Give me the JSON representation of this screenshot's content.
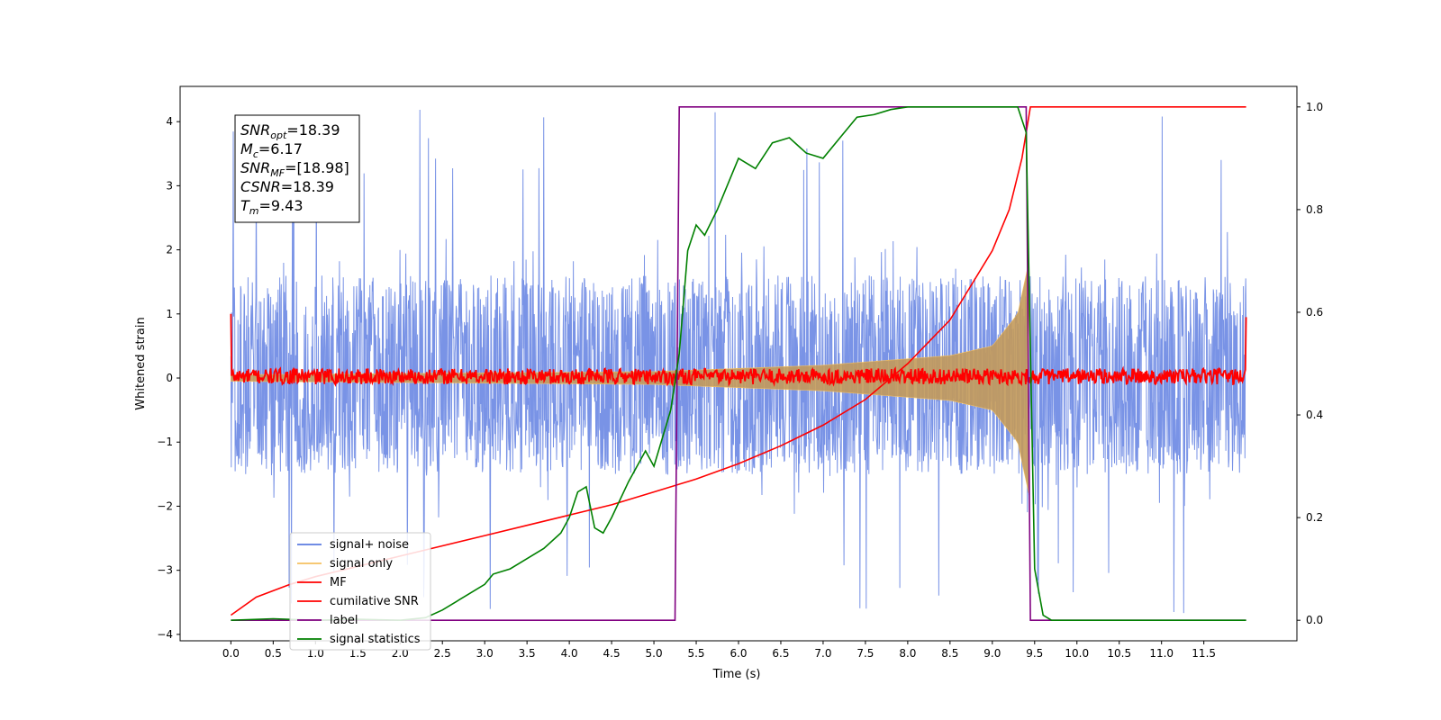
{
  "chart_data": {
    "type": "line",
    "xlabel": "Time (s)",
    "ylabel": "Whitened strain",
    "xlim": [
      -0.6,
      12.6
    ],
    "ylim": [
      -4.1,
      4.55
    ],
    "y2lim": [
      -0.04,
      1.04
    ],
    "xticks": [
      "0.0",
      "0.5",
      "1.0",
      "1.5",
      "2.0",
      "2.5",
      "3.0",
      "3.5",
      "4.0",
      "4.5",
      "5.0",
      "5.5",
      "6.0",
      "6.5",
      "7.0",
      "7.5",
      "8.0",
      "8.5",
      "9.0",
      "9.5",
      "10.0",
      "10.5",
      "11.0",
      "11.5"
    ],
    "yticks": [
      "4",
      "3",
      "2",
      "1",
      "0",
      "−1",
      "−2",
      "−3",
      "−4"
    ],
    "y2ticks": [
      "1.0",
      "0.8",
      "0.6",
      "0.4",
      "0.2",
      "0.0"
    ],
    "grid": false,
    "legend_position": "lower-left",
    "annotation": [
      {
        "main": "SNR",
        "sub": "opt",
        "rest": "=18.39"
      },
      {
        "main": "M",
        "sub": "c",
        "rest": "=6.17"
      },
      {
        "main": "SNR",
        "sub": "MF",
        "rest": "=[18.98]"
      },
      {
        "main": "CSNR",
        "sub": "",
        "rest": "=18.39"
      },
      {
        "main": "T",
        "sub": "m",
        "rest": "=9.43"
      }
    ],
    "series": [
      {
        "name": "signal+ noise",
        "color": "#5b7be0",
        "axis": "left",
        "envelope": {
          "upper_typical": 1.6,
          "upper_peak": 4.2,
          "lower_typical": -1.5,
          "lower_peak": -3.7,
          "t_start": 0.0,
          "t_end": 12.0
        }
      },
      {
        "name": "signal only",
        "color": "#f5c060",
        "axis": "left",
        "chirp_amplitude": [
          [
            0.0,
            0.05
          ],
          [
            5.0,
            0.1
          ],
          [
            7.0,
            0.2
          ],
          [
            8.5,
            0.35
          ],
          [
            9.0,
            0.5
          ],
          [
            9.3,
            1.0
          ],
          [
            9.43,
            1.8
          ]
        ]
      },
      {
        "name": "MF",
        "color": "#ff0000",
        "axis": "left",
        "noise_band": [
          -0.1,
          0.15
        ],
        "ends": [
          [
            0.0,
            1.0
          ],
          [
            12.0,
            0.95
          ]
        ]
      },
      {
        "name": "cumilative SNR",
        "color": "#ff0000",
        "axis": "right",
        "x": [
          0.0,
          0.3,
          0.7,
          1.0,
          1.5,
          2.0,
          2.5,
          3.0,
          3.5,
          4.0,
          4.5,
          5.0,
          5.5,
          6.0,
          6.5,
          7.0,
          7.5,
          8.0,
          8.5,
          9.0,
          9.2,
          9.35,
          9.45,
          12.0
        ],
        "y": [
          0.01,
          0.045,
          0.07,
          0.085,
          0.105,
          0.125,
          0.145,
          0.165,
          0.185,
          0.205,
          0.225,
          0.25,
          0.275,
          0.305,
          0.34,
          0.38,
          0.43,
          0.5,
          0.585,
          0.72,
          0.8,
          0.9,
          1.0,
          1.0
        ]
      },
      {
        "name": "label",
        "color": "#800080",
        "axis": "right",
        "x": [
          0.0,
          5.25,
          5.3,
          9.4,
          9.45,
          12.0
        ],
        "y": [
          0.0,
          0.0,
          1.0,
          1.0,
          0.0,
          0.0
        ]
      },
      {
        "name": "signal statistics",
        "color": "#008000",
        "axis": "right",
        "x": [
          0.0,
          0.5,
          1.0,
          1.5,
          2.0,
          2.3,
          2.5,
          2.8,
          3.0,
          3.1,
          3.3,
          3.5,
          3.7,
          3.9,
          4.0,
          4.1,
          4.2,
          4.3,
          4.4,
          4.5,
          4.7,
          4.9,
          5.0,
          5.2,
          5.3,
          5.4,
          5.5,
          5.6,
          5.75,
          5.9,
          6.0,
          6.2,
          6.4,
          6.6,
          6.8,
          7.0,
          7.2,
          7.4,
          7.6,
          7.8,
          8.0,
          8.5,
          9.0,
          9.3,
          9.4,
          9.5,
          9.6,
          9.7,
          12.0
        ],
        "y": [
          0.0,
          0.003,
          0.0,
          0.002,
          0.0,
          0.005,
          0.02,
          0.05,
          0.07,
          0.09,
          0.1,
          0.12,
          0.14,
          0.17,
          0.2,
          0.25,
          0.26,
          0.18,
          0.17,
          0.2,
          0.27,
          0.33,
          0.3,
          0.41,
          0.52,
          0.72,
          0.77,
          0.75,
          0.8,
          0.86,
          0.9,
          0.88,
          0.93,
          0.94,
          0.91,
          0.9,
          0.94,
          0.98,
          0.985,
          0.995,
          1.0,
          1.0,
          1.0,
          1.0,
          0.95,
          0.1,
          0.01,
          0.0,
          0.0
        ]
      }
    ]
  }
}
